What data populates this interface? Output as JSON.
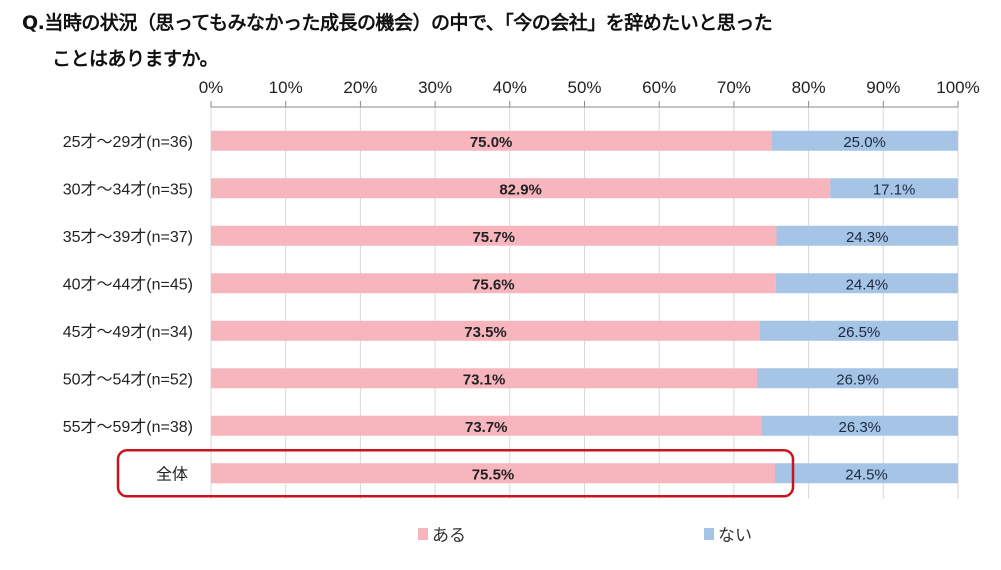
{
  "chart_data": {
    "type": "bar",
    "stacked": true,
    "orientation": "horizontal",
    "title_line1": "Q.当時の状況（思ってもみなかった成長の機会）の中で、「今の会社」を辞めたいと思った",
    "title_line2": "ことはありますか。",
    "categories": [
      "25才～29才(n=36)",
      "30才～34才(n=35)",
      "35才～39才(n=37)",
      "40才～44才(n=45)",
      "45才～49才(n=34)",
      "50才～54才(n=52)",
      "55才～59才(n=38)",
      "全体"
    ],
    "series": [
      {
        "name": "ある",
        "color": "#F7B6BE",
        "values": [
          75.0,
          82.9,
          75.7,
          75.6,
          73.5,
          73.1,
          73.7,
          75.5
        ]
      },
      {
        "name": "ない",
        "color": "#A6C4E6",
        "values": [
          25.0,
          17.1,
          24.3,
          24.4,
          26.5,
          26.9,
          26.3,
          24.5
        ]
      }
    ],
    "xlim": [
      0,
      100
    ],
    "xticks": [
      "0%",
      "10%",
      "20%",
      "30%",
      "40%",
      "50%",
      "60%",
      "70%",
      "80%",
      "90%",
      "100%"
    ],
    "grid": true,
    "legend_position": "bottom",
    "highlight_category": "全体",
    "highlight_color": "#C8141E"
  }
}
